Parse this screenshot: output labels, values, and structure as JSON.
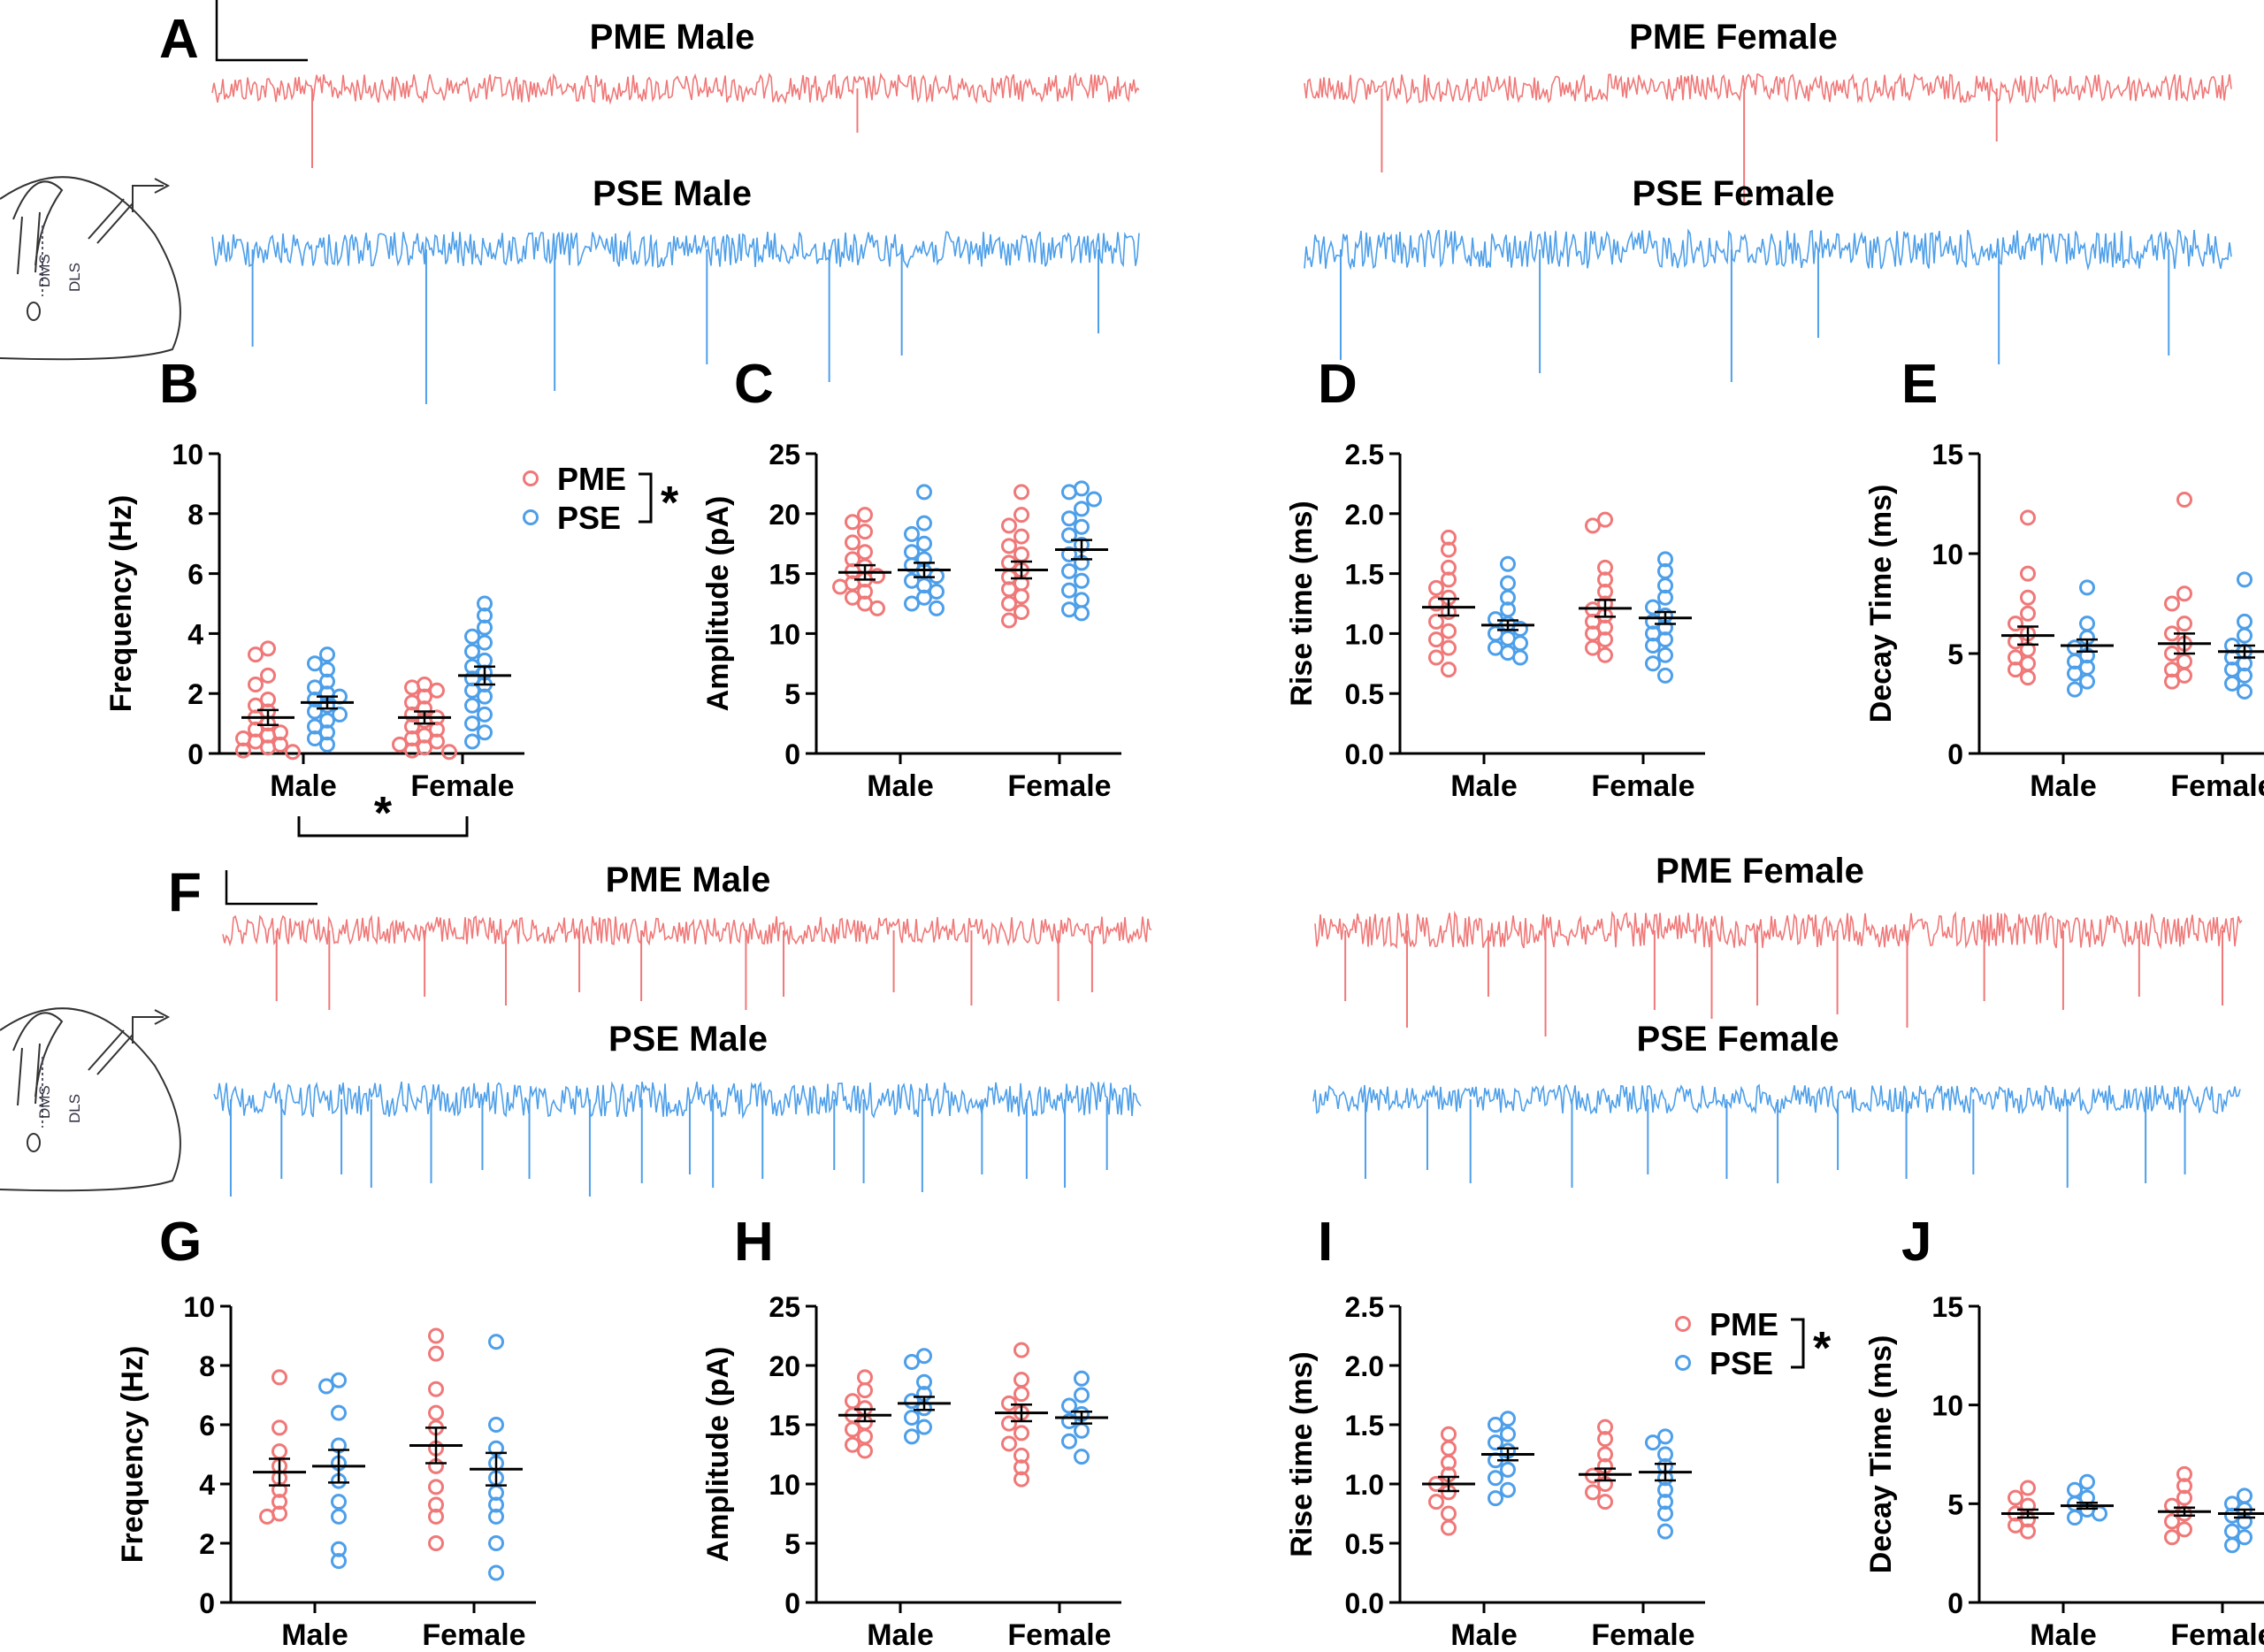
{
  "colors": {
    "pme": "#F07878",
    "pse": "#4D9FEA",
    "axis": "#000000"
  },
  "significance_mark": "*",
  "traces": [
    {
      "panel": "A",
      "row": 1,
      "side": "left",
      "group": "pme",
      "title": "PME Male",
      "spikes": [
        90,
        50
      ]
    },
    {
      "panel": "A",
      "row": 1,
      "side": "right",
      "group": "pme",
      "title": "PME Female",
      "spikes": [
        95,
        130,
        60
      ]
    },
    {
      "panel": "A",
      "row": 2,
      "side": "left",
      "group": "pse",
      "title": "PSE Male",
      "spikes": [
        110,
        175,
        160,
        130,
        150,
        120,
        95
      ]
    },
    {
      "panel": "A",
      "row": 2,
      "side": "right",
      "group": "pse",
      "title": "PSE Female",
      "spikes": [
        125,
        140,
        150,
        100,
        130,
        120
      ]
    },
    {
      "panel": "F",
      "row": 1,
      "side": "left",
      "group": "pme",
      "title": "PME Male",
      "spikes": [
        80,
        90,
        75,
        85,
        70,
        80,
        90,
        75,
        70,
        85,
        80,
        70
      ]
    },
    {
      "panel": "F",
      "row": 1,
      "side": "right",
      "group": "pme",
      "title": "PME Female",
      "spikes": [
        80,
        110,
        75,
        120,
        90,
        100,
        85,
        95,
        110,
        80,
        90,
        75,
        85
      ]
    },
    {
      "panel": "F",
      "row": 2,
      "side": "left",
      "group": "pse",
      "title": "PSE Male",
      "spikes": [
        110,
        90,
        85,
        100,
        95,
        80,
        90,
        110,
        95,
        85,
        100,
        90,
        80,
        95,
        105,
        85,
        90,
        100,
        80
      ]
    },
    {
      "panel": "F",
      "row": 2,
      "side": "right",
      "group": "pse",
      "title": "PSE Female",
      "spikes": [
        90,
        80,
        95,
        100,
        85,
        90,
        95,
        80,
        90,
        85,
        100,
        95,
        85
      ]
    }
  ],
  "inset_labels": {
    "dms": "DMS",
    "dls": "DLS"
  },
  "chart_data": [
    {
      "id": "B",
      "type": "scatter",
      "ylabel": "Frequency (Hz)",
      "ylim": [
        0,
        10
      ],
      "yticks": [
        "0",
        "2",
        "4",
        "6",
        "8",
        "10"
      ],
      "categories": [
        "Male",
        "Female"
      ],
      "series": [
        {
          "name": "PME",
          "color": "pme",
          "values": [
            [
              3.5,
              3.3,
              2.6,
              2.3,
              1.8,
              1.6,
              1.4,
              1.2,
              1.0,
              0.8,
              0.7,
              0.6,
              0.5,
              0.4,
              0.3,
              0.2,
              0.1,
              0.05
            ],
            [
              2.3,
              2.2,
              2.1,
              1.9,
              1.7,
              1.5,
              1.3,
              1.2,
              1.1,
              0.9,
              0.8,
              0.6,
              0.5,
              0.4,
              0.3,
              0.2,
              0.1,
              0.05
            ]
          ],
          "mean": [
            1.2,
            1.2
          ],
          "sem": [
            0.25,
            0.2
          ]
        },
        {
          "name": "PSE",
          "color": "pse",
          "values": [
            [
              3.3,
              3.0,
              2.8,
              2.4,
              2.2,
              2.0,
              1.9,
              1.8,
              1.6,
              1.4,
              1.3,
              1.1,
              0.9,
              0.7,
              0.5,
              0.3
            ],
            [
              5.0,
              4.6,
              4.2,
              3.9,
              3.7,
              3.4,
              3.1,
              2.9,
              2.7,
              2.5,
              2.3,
              2.1,
              1.9,
              1.6,
              1.3,
              1.0,
              0.7,
              0.4
            ]
          ],
          "mean": [
            1.7,
            2.6
          ],
          "sem": [
            0.2,
            0.3
          ]
        }
      ],
      "legend": {
        "entries": [
          "PME",
          "PSE"
        ],
        "sig": "*"
      },
      "bottom_sig": "*"
    },
    {
      "id": "C",
      "type": "scatter",
      "ylabel": "Amplitude (pA)",
      "ylim": [
        0,
        25
      ],
      "yticks": [
        "0",
        "5",
        "10",
        "15",
        "20",
        "25"
      ],
      "categories": [
        "Male",
        "Female"
      ],
      "series": [
        {
          "name": "PME",
          "color": "pme",
          "values": [
            [
              19.9,
              19.3,
              18.5,
              17.6,
              16.8,
              16.2,
              15.6,
              15.2,
              14.8,
              14.5,
              14.2,
              13.9,
              13.5,
              13.0,
              12.5,
              12.1
            ],
            [
              21.8,
              19.9,
              19.0,
              18.1,
              17.3,
              16.6,
              15.9,
              15.3,
              14.7,
              14.2,
              13.7,
              13.1,
              12.5,
              11.8,
              11.1
            ]
          ],
          "mean": [
            15.1,
            15.3
          ],
          "sem": [
            0.6,
            0.7
          ]
        },
        {
          "name": "PSE",
          "color": "pse",
          "values": [
            [
              21.8,
              19.2,
              18.3,
              17.5,
              16.8,
              16.2,
              15.7,
              15.2,
              14.8,
              14.4,
              14.0,
              13.5,
              13.0,
              12.5,
              12.1
            ],
            [
              22.1,
              21.8,
              21.2,
              20.4,
              19.6,
              18.9,
              18.2,
              17.4,
              16.6,
              15.9,
              15.2,
              14.4,
              13.6,
              12.8,
              12.0,
              11.7
            ]
          ],
          "mean": [
            15.3,
            17.0
          ],
          "sem": [
            0.6,
            0.8
          ]
        }
      ]
    },
    {
      "id": "D",
      "type": "scatter",
      "ylabel": "Rise time (ms)",
      "ylim": [
        0,
        2.5
      ],
      "yticks": [
        "0.0",
        "0.5",
        "1.0",
        "1.5",
        "2.0",
        "2.5"
      ],
      "categories": [
        "Male",
        "Female"
      ],
      "series": [
        {
          "name": "PME",
          "color": "pme",
          "values": [
            [
              1.8,
              1.7,
              1.55,
              1.45,
              1.38,
              1.3,
              1.25,
              1.18,
              1.1,
              1.02,
              0.95,
              0.88,
              0.8,
              0.7
            ],
            [
              1.95,
              1.9,
              1.55,
              1.45,
              1.35,
              1.25,
              1.2,
              1.15,
              1.1,
              1.05,
              1.0,
              0.95,
              0.88,
              0.82
            ]
          ],
          "mean": [
            1.22,
            1.21
          ],
          "sem": [
            0.07,
            0.07
          ]
        },
        {
          "name": "PSE",
          "color": "pse",
          "values": [
            [
              1.58,
              1.42,
              1.3,
              1.2,
              1.12,
              1.08,
              1.04,
              1.0,
              0.96,
              0.92,
              0.88,
              0.84,
              0.8
            ],
            [
              1.62,
              1.52,
              1.4,
              1.3,
              1.22,
              1.15,
              1.1,
              1.05,
              1.0,
              0.95,
              0.9,
              0.82,
              0.75,
              0.65
            ]
          ],
          "mean": [
            1.07,
            1.13
          ],
          "sem": [
            0.04,
            0.05
          ]
        }
      ]
    },
    {
      "id": "E",
      "type": "scatter",
      "ylabel": "Decay Time (ms)",
      "ylim": [
        0,
        15
      ],
      "yticks": [
        "0",
        "5",
        "10",
        "15"
      ],
      "categories": [
        "Male",
        "Female"
      ],
      "series": [
        {
          "name": "PME",
          "color": "pme",
          "values": [
            [
              11.8,
              9.0,
              7.8,
              7.0,
              6.5,
              6.0,
              5.6,
              5.2,
              4.8,
              4.5,
              4.2,
              3.8
            ],
            [
              12.7,
              8.0,
              7.5,
              6.5,
              6.0,
              5.5,
              5.0,
              4.6,
              4.2,
              3.9,
              3.6
            ]
          ],
          "mean": [
            5.9,
            5.5
          ],
          "sem": [
            0.45,
            0.5
          ]
        },
        {
          "name": "PSE",
          "color": "pse",
          "values": [
            [
              8.3,
              6.5,
              5.8,
              5.3,
              4.9,
              4.6,
              4.3,
              4.0,
              3.6,
              3.2
            ],
            [
              8.7,
              6.6,
              5.9,
              5.4,
              5.1,
              4.8,
              4.5,
              4.2,
              3.9,
              3.5,
              3.1
            ]
          ],
          "mean": [
            5.4,
            5.1
          ],
          "sem": [
            0.3,
            0.3
          ]
        }
      ]
    },
    {
      "id": "G",
      "type": "scatter",
      "ylabel": "Frequency (Hz)",
      "ylim": [
        0,
        10
      ],
      "yticks": [
        "0",
        "2",
        "4",
        "6",
        "8",
        "10"
      ],
      "categories": [
        "Male",
        "Female"
      ],
      "series": [
        {
          "name": "PME",
          "color": "pme",
          "values": [
            [
              7.6,
              5.9,
              5.1,
              4.6,
              4.2,
              3.8,
              3.4,
              3.0,
              2.9
            ],
            [
              9.0,
              8.4,
              7.2,
              6.4,
              5.9,
              5.2,
              4.6,
              3.9,
              3.3,
              2.9,
              2.0
            ]
          ],
          "mean": [
            4.4,
            5.3
          ],
          "sem": [
            0.45,
            0.6
          ]
        },
        {
          "name": "PSE",
          "color": "pse",
          "values": [
            [
              7.5,
              7.3,
              6.4,
              5.3,
              4.7,
              4.1,
              3.4,
              2.9,
              1.8,
              1.4
            ],
            [
              8.8,
              6.0,
              5.2,
              4.7,
              4.2,
              3.7,
              3.3,
              2.9,
              2.0,
              1.0
            ]
          ],
          "mean": [
            4.6,
            4.5
          ],
          "sem": [
            0.55,
            0.55
          ]
        }
      ]
    },
    {
      "id": "H",
      "type": "scatter",
      "ylabel": "Amplitude (pA)",
      "ylim": [
        0,
        25
      ],
      "yticks": [
        "0",
        "5",
        "10",
        "15",
        "20",
        "25"
      ],
      "categories": [
        "Male",
        "Female"
      ],
      "series": [
        {
          "name": "PME",
          "color": "pme",
          "values": [
            [
              19.0,
              17.9,
              17.0,
              16.4,
              15.8,
              15.2,
              14.6,
              14.0,
              13.3,
              12.8
            ],
            [
              21.3,
              18.8,
              17.6,
              16.8,
              16.0,
              15.1,
              14.3,
              13.4,
              12.4,
              11.4,
              10.4
            ]
          ],
          "mean": [
            15.8,
            16.0
          ],
          "sem": [
            0.5,
            0.7
          ]
        },
        {
          "name": "PSE",
          "color": "pse",
          "values": [
            [
              20.8,
              20.3,
              18.6,
              17.6,
              17.0,
              16.4,
              15.6,
              14.8,
              14.0
            ],
            [
              18.9,
              17.5,
              16.6,
              15.9,
              15.3,
              14.5,
              13.6,
              12.3
            ]
          ],
          "mean": [
            16.8,
            15.6
          ],
          "sem": [
            0.55,
            0.5
          ]
        }
      ]
    },
    {
      "id": "I",
      "type": "scatter",
      "ylabel": "Rise time (ms)",
      "ylim": [
        0,
        2.5
      ],
      "yticks": [
        "0.0",
        "0.5",
        "1.0",
        "1.5",
        "2.0",
        "2.5"
      ],
      "categories": [
        "Male",
        "Female"
      ],
      "series": [
        {
          "name": "PME",
          "color": "pme",
          "values": [
            [
              1.42,
              1.3,
              1.18,
              1.08,
              1.0,
              0.93,
              0.85,
              0.75,
              0.63
            ],
            [
              1.48,
              1.38,
              1.25,
              1.15,
              1.07,
              1.0,
              0.93,
              0.85
            ]
          ],
          "mean": [
            1.0,
            1.08
          ],
          "sem": [
            0.06,
            0.05
          ]
        },
        {
          "name": "PSE",
          "color": "pse",
          "values": [
            [
              1.55,
              1.5,
              1.42,
              1.35,
              1.28,
              1.2,
              1.12,
              1.05,
              0.95,
              0.88
            ],
            [
              1.4,
              1.35,
              1.25,
              1.15,
              1.05,
              0.95,
              0.85,
              0.75,
              0.6
            ]
          ],
          "mean": [
            1.25,
            1.1
          ],
          "sem": [
            0.05,
            0.07
          ]
        }
      ],
      "legend": {
        "entries": [
          "PME",
          "PSE"
        ],
        "sig": "*"
      }
    },
    {
      "id": "J",
      "type": "scatter",
      "ylabel": "Decay Time (ms)",
      "ylim": [
        0,
        15
      ],
      "yticks": [
        "0",
        "5",
        "10",
        "15"
      ],
      "categories": [
        "Male",
        "Female"
      ],
      "series": [
        {
          "name": "PME",
          "color": "pme",
          "values": [
            [
              5.8,
              5.3,
              4.9,
              4.5,
              4.2,
              3.9,
              3.6
            ],
            [
              6.5,
              5.9,
              5.3,
              4.9,
              4.5,
              4.1,
              3.7,
              3.3
            ]
          ],
          "mean": [
            4.5,
            4.6
          ],
          "sem": [
            0.2,
            0.2
          ]
        },
        {
          "name": "PSE",
          "color": "pse",
          "values": [
            [
              6.1,
              5.7,
              5.3,
              5.0,
              4.7,
              4.5,
              4.3
            ],
            [
              5.4,
              5.0,
              4.7,
              4.4,
              4.1,
              3.6,
              3.3,
              2.9
            ]
          ],
          "mean": [
            4.9,
            4.5
          ],
          "sem": [
            0.15,
            0.2
          ]
        }
      ]
    }
  ]
}
